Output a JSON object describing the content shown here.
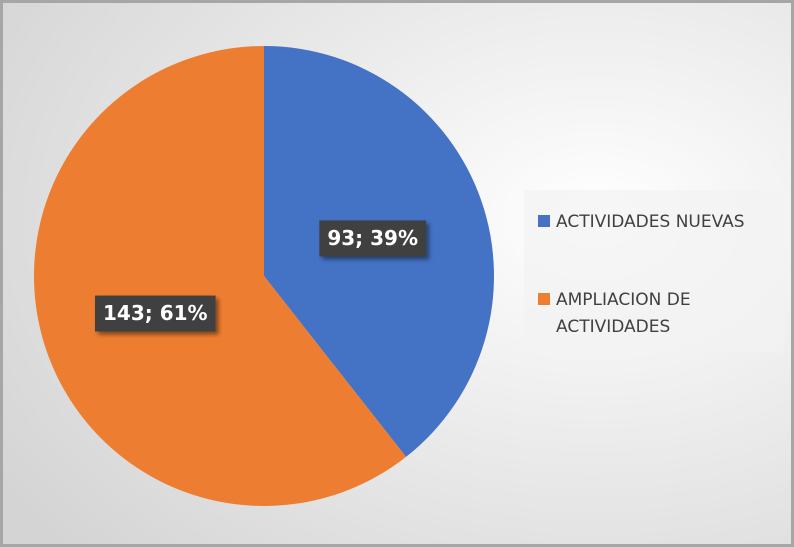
{
  "chart_data": {
    "type": "pie",
    "categories": [
      "ACTIVIDADES NUEVAS",
      "AMPLIACION DE ACTIVIDADES"
    ],
    "values": [
      93,
      143
    ],
    "value_labels": [
      "93; 39%",
      "143; 61%"
    ],
    "colors": [
      "#4472c4",
      "#ed7d31"
    ],
    "legend": "right"
  }
}
